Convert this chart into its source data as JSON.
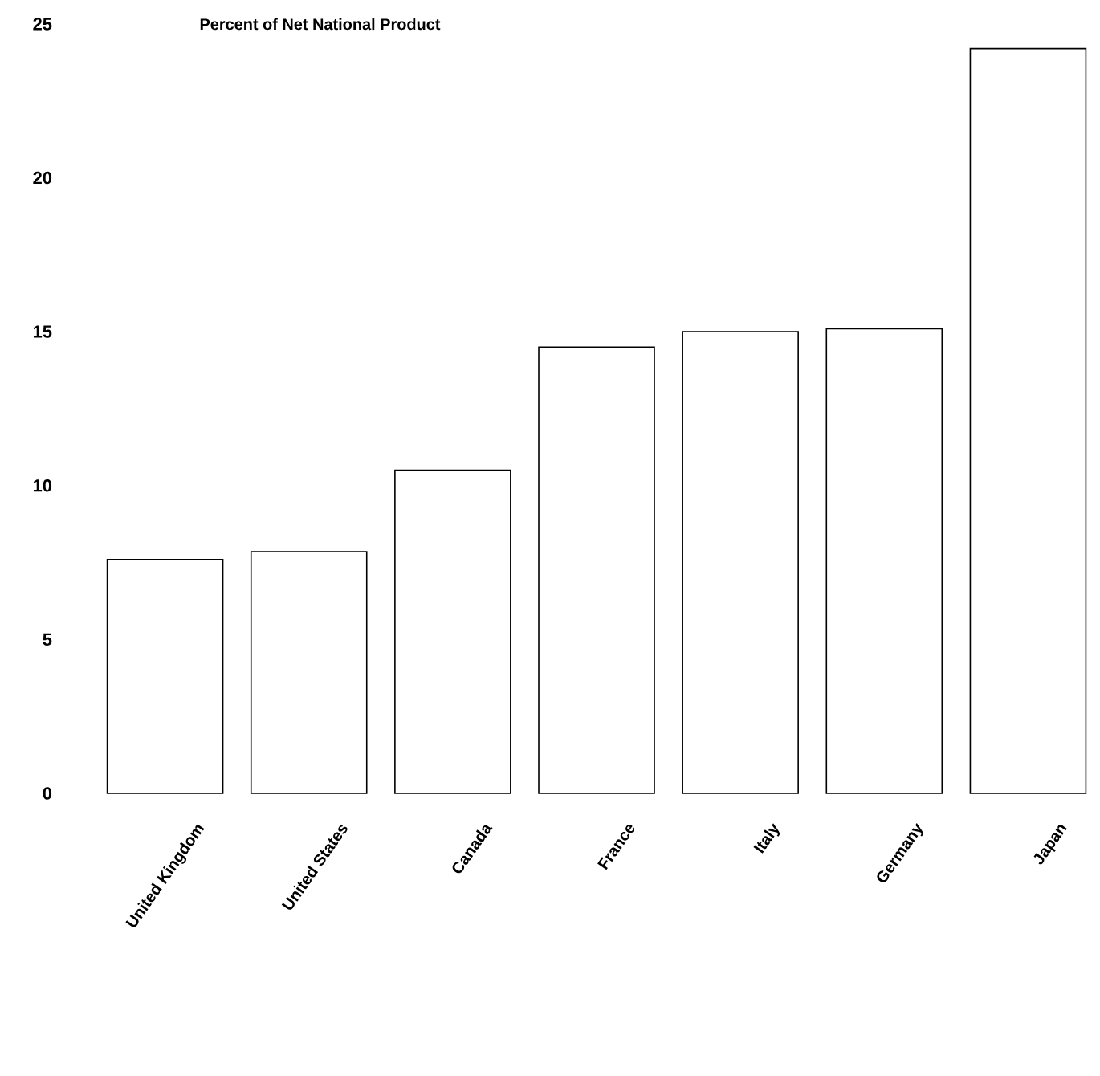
{
  "chart_data": {
    "type": "bar",
    "ylabel": "Percent of Net National Product",
    "categories": [
      "United Kingdom",
      "United States",
      "Canada",
      "France",
      "Italy",
      "Germany",
      "Japan"
    ],
    "values": [
      7.6,
      7.85,
      10.5,
      14.5,
      15.0,
      15.1,
      24.2
    ],
    "color": "#ffffff",
    "ylim": [
      0,
      25
    ],
    "yticks": [
      0,
      5,
      10,
      15,
      20,
      25
    ],
    "grid": false
  }
}
